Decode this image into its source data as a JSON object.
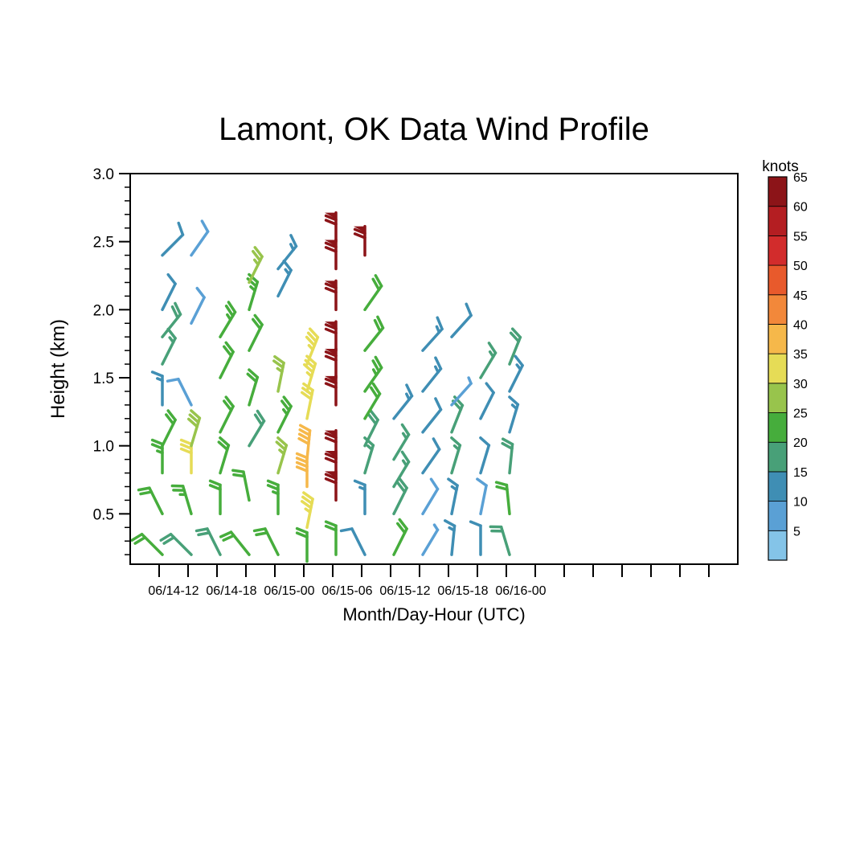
{
  "chart_data": {
    "type": "wind-barb",
    "title": "Lamont, OK  Data Wind Profile",
    "xlabel": "Month/Day-Hour (UTC)",
    "ylabel": "Height (km)",
    "ylim": [
      0.13,
      3.0
    ],
    "xlim": [
      9,
      30
    ],
    "y_major_ticks": [
      0.5,
      1.0,
      1.5,
      2.0,
      2.5,
      3.0
    ],
    "y_tick_labels": [
      "0.5",
      "1.0",
      "1.5",
      "2.0",
      "2.5",
      "3.0"
    ],
    "y_minor_step": 0.1,
    "x_ticks": [
      10,
      11,
      12,
      13,
      14,
      15,
      16,
      17,
      18,
      19,
      20,
      21,
      22,
      23,
      24,
      25,
      26,
      27,
      28,
      29
    ],
    "x_tick_labels": [
      {
        "x": 10.5,
        "label": "06/14-12"
      },
      {
        "x": 12.5,
        "label": "06/14-18"
      },
      {
        "x": 14.5,
        "label": "06/15-00"
      },
      {
        "x": 16.5,
        "label": "06/15-06"
      },
      {
        "x": 18.5,
        "label": "06/15-12"
      },
      {
        "x": 20.5,
        "label": "06/15-18"
      },
      {
        "x": 22.5,
        "label": "06/16-00"
      }
    ],
    "legend": {
      "title": "knots",
      "placement": "right",
      "levels": [
        5,
        10,
        15,
        20,
        25,
        30,
        35,
        40,
        45,
        50,
        55,
        60,
        65
      ],
      "level_labels": [
        "5",
        "10",
        "15",
        "20",
        "25",
        "30",
        "35",
        "40",
        "45",
        "50",
        "55",
        "60",
        "65"
      ],
      "colors": [
        "#84c4e8",
        "#5aa0d5",
        "#3f8eb4",
        "#48a078",
        "#46ad3c",
        "#98c44c",
        "#e6dc56",
        "#f6b84a",
        "#f2883a",
        "#e85a2c",
        "#d22c2c",
        "#b41e22",
        "#8c1418"
      ]
    },
    "profiles": [
      {
        "x": 10,
        "points": [
          [
            0.2,
            -1,
            20
          ],
          [
            0.5,
            -0.5,
            22
          ],
          [
            0.8,
            0,
            24
          ],
          [
            1.0,
            0.5,
            20
          ],
          [
            1.3,
            0,
            14
          ],
          [
            1.6,
            0.5,
            16
          ],
          [
            1.8,
            0.8,
            18
          ],
          [
            2.0,
            0.5,
            10
          ],
          [
            2.4,
            1,
            10
          ]
        ]
      },
      {
        "x": 11,
        "points": [
          [
            0.2,
            -1,
            18
          ],
          [
            0.5,
            -0.3,
            24
          ],
          [
            0.8,
            0,
            30
          ],
          [
            1.0,
            0.3,
            28
          ],
          [
            1.3,
            -0.5,
            8
          ],
          [
            1.9,
            0.5,
            8
          ],
          [
            2.4,
            0.7,
            8
          ]
        ]
      },
      {
        "x": 12,
        "points": [
          [
            0.2,
            -0.5,
            18
          ],
          [
            0.5,
            0,
            20
          ],
          [
            0.8,
            0.3,
            22
          ],
          [
            1.1,
            0.5,
            20
          ],
          [
            1.5,
            0.5,
            22
          ],
          [
            1.8,
            0.6,
            24
          ]
        ]
      },
      {
        "x": 13,
        "points": [
          [
            0.2,
            -0.8,
            20
          ],
          [
            0.6,
            -0.2,
            22
          ],
          [
            1.0,
            0.6,
            18
          ],
          [
            1.3,
            0.3,
            20
          ],
          [
            1.7,
            0.5,
            22
          ],
          [
            2.0,
            0.3,
            24
          ],
          [
            2.2,
            0.5,
            26
          ]
        ]
      },
      {
        "x": 14,
        "points": [
          [
            0.2,
            -0.5,
            22
          ],
          [
            0.5,
            0,
            24
          ],
          [
            0.8,
            0.3,
            26
          ],
          [
            1.1,
            0.5,
            24
          ],
          [
            1.4,
            0.2,
            26
          ],
          [
            2.1,
            0.5,
            14
          ],
          [
            2.3,
            0.8,
            14
          ]
        ]
      },
      {
        "x": 15,
        "points": [
          [
            0.15,
            0,
            22
          ],
          [
            0.4,
            0.2,
            34
          ],
          [
            0.7,
            0,
            38
          ],
          [
            0.9,
            0.1,
            38
          ],
          [
            1.2,
            0.2,
            32
          ],
          [
            1.4,
            0.3,
            34
          ],
          [
            1.6,
            0.4,
            34
          ]
        ]
      },
      {
        "x": 16,
        "points": [
          [
            0.2,
            0,
            20
          ],
          [
            0.6,
            0,
            68
          ],
          [
            0.75,
            0,
            68
          ],
          [
            0.9,
            0,
            68
          ],
          [
            1.3,
            0,
            70
          ],
          [
            1.5,
            0,
            70
          ],
          [
            1.7,
            0,
            70
          ],
          [
            2.0,
            0,
            70
          ],
          [
            2.3,
            0,
            70
          ],
          [
            2.5,
            0,
            70
          ]
        ]
      },
      {
        "x": 17,
        "points": [
          [
            0.2,
            -0.5,
            12
          ],
          [
            0.5,
            0,
            14
          ],
          [
            0.8,
            0.3,
            16
          ],
          [
            1.0,
            0.5,
            18
          ],
          [
            1.2,
            0.6,
            20
          ],
          [
            1.4,
            0.7,
            24
          ],
          [
            1.7,
            0.8,
            20
          ],
          [
            2.0,
            0.7,
            22
          ],
          [
            2.4,
            0,
            70
          ]
        ]
      },
      {
        "x": 18,
        "points": [
          [
            0.2,
            0.5,
            22
          ],
          [
            0.5,
            0.5,
            18
          ],
          [
            0.7,
            0.6,
            16
          ],
          [
            0.9,
            0.6,
            16
          ],
          [
            1.2,
            0.8,
            14
          ]
        ]
      },
      {
        "x": 19,
        "points": [
          [
            0.2,
            0.6,
            6
          ],
          [
            0.5,
            0.6,
            8
          ],
          [
            0.8,
            0.7,
            10
          ],
          [
            1.1,
            0.8,
            12
          ],
          [
            1.4,
            0.8,
            14
          ],
          [
            1.7,
            0.9,
            14
          ]
        ]
      },
      {
        "x": 20,
        "points": [
          [
            0.2,
            0.1,
            14
          ],
          [
            0.5,
            0.2,
            14
          ],
          [
            0.8,
            0.3,
            16
          ],
          [
            1.1,
            0.4,
            18
          ],
          [
            1.3,
            0.9,
            6
          ],
          [
            1.8,
            0.9,
            10
          ]
        ]
      },
      {
        "x": 21,
        "points": [
          [
            0.2,
            0,
            10
          ],
          [
            0.5,
            0.2,
            8
          ],
          [
            0.8,
            0.3,
            10
          ],
          [
            1.2,
            0.5,
            12
          ],
          [
            1.5,
            0.6,
            16
          ]
        ]
      },
      {
        "x": 22,
        "points": [
          [
            0.2,
            -0.3,
            18
          ],
          [
            0.5,
            -0.1,
            20
          ],
          [
            0.8,
            0.1,
            18
          ],
          [
            1.1,
            0.3,
            14
          ],
          [
            1.4,
            0.5,
            14
          ],
          [
            1.6,
            0.4,
            18
          ]
        ]
      }
    ]
  }
}
